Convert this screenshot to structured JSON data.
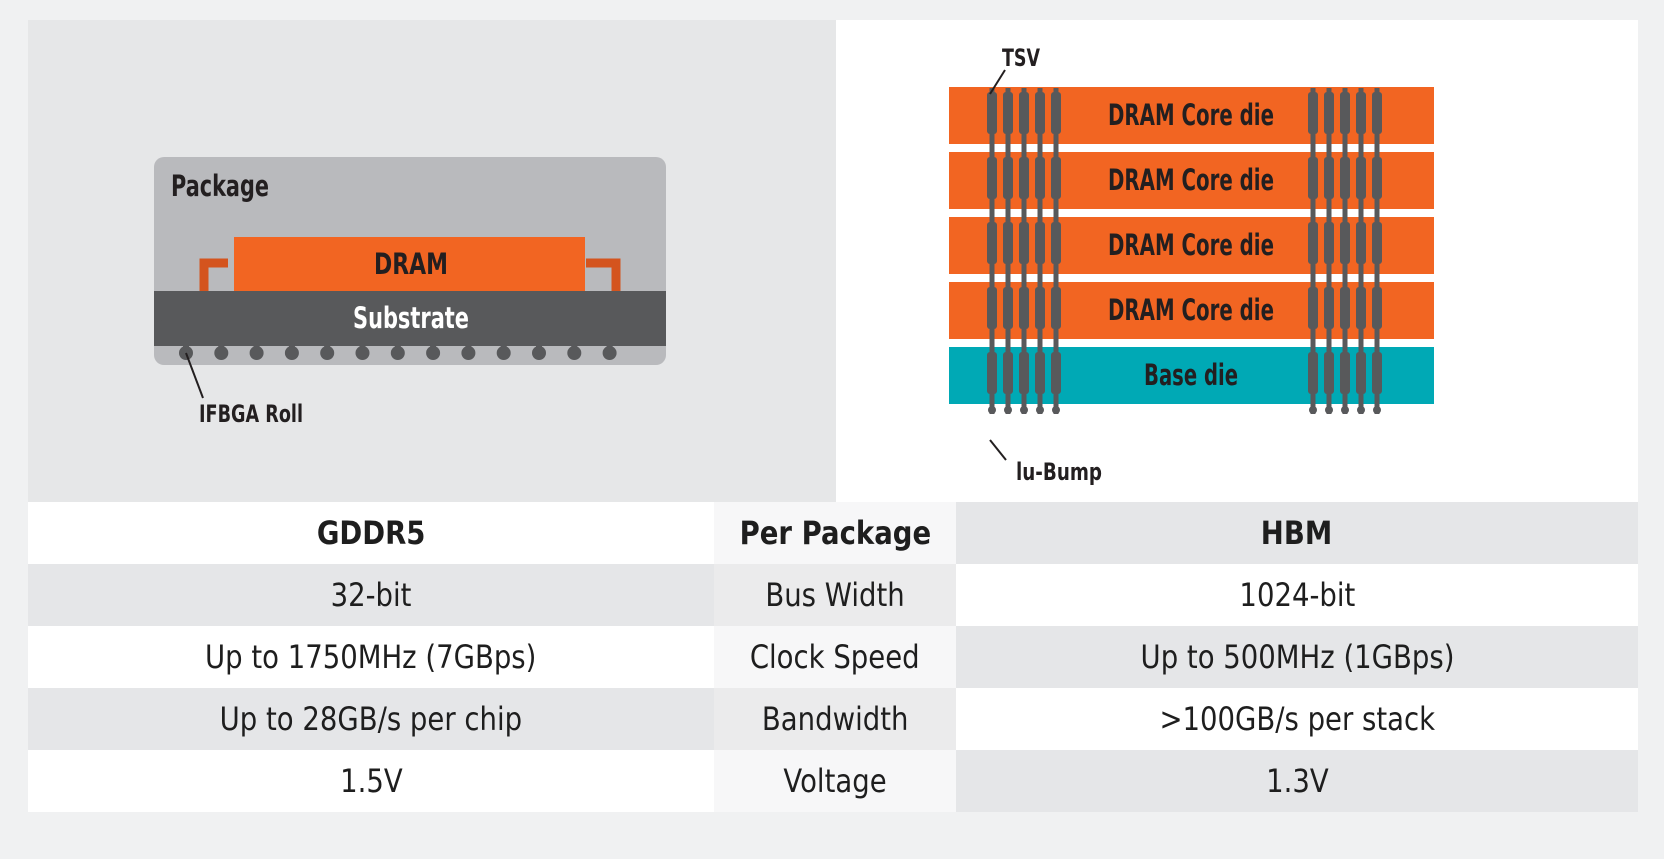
{
  "colors": {
    "dram_orange": "#f26522",
    "base_die_teal": "#00a9b5",
    "substrate_dark": "#58595b",
    "package_grey": "#b9babd",
    "panel_grey": "#e6e7e8",
    "wire_orange": "#d4541e",
    "tsv_grey": "#58595b"
  },
  "gddr5_diagram": {
    "package_label": "Package",
    "dram_label": "DRAM",
    "substrate_label": "Substrate",
    "ball_label": "IFBGA Roll",
    "ball_count": 13
  },
  "hbm_diagram": {
    "tsv_label": "TSV",
    "bump_label": "lu-Bump",
    "dies": [
      {
        "label": "DRAM Core die",
        "type": "dram"
      },
      {
        "label": "DRAM Core die",
        "type": "dram"
      },
      {
        "label": "DRAM Core die",
        "type": "dram"
      },
      {
        "label": "DRAM Core die",
        "type": "dram"
      },
      {
        "label": "Base die",
        "type": "base"
      }
    ],
    "tsv_per_group": 5
  },
  "table": {
    "header": {
      "left": "GDDR5",
      "middle": "Per Package",
      "right": "HBM"
    },
    "rows": [
      {
        "left": "32-bit",
        "middle": "Bus Width",
        "right": "1024-bit"
      },
      {
        "left": "Up to 1750MHz (7GBps)",
        "middle": "Clock Speed",
        "right": "Up to 500MHz (1GBps)"
      },
      {
        "left": "Up to 28GB/s per chip",
        "middle": "Bandwidth",
        "right": ">100GB/s per stack"
      },
      {
        "left": "1.5V",
        "middle": "Voltage",
        "right": "1.3V"
      }
    ]
  }
}
